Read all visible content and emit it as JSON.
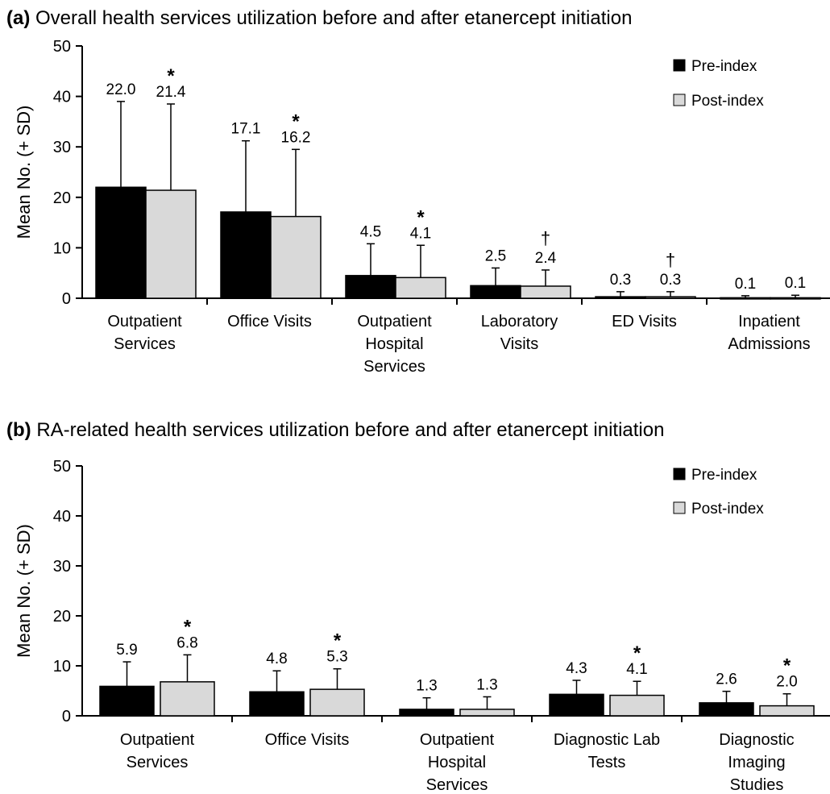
{
  "colors": {
    "pre": "#000000",
    "post": "#d9d9d9",
    "axis": "#000000"
  },
  "legend": {
    "pre_label": "Pre-index",
    "post_label": "Post-index",
    "placement": "top-right"
  },
  "chart_data": [
    {
      "type": "bar",
      "panel": "(a)",
      "title": "Overall health services utilization before and after etanercept initiation",
      "ylabel": "Mean No. (+ SD)",
      "xlabel": "",
      "ylim": [
        0,
        50
      ],
      "yticks": [
        0,
        10,
        20,
        30,
        40,
        50
      ],
      "categories": [
        [
          "Outpatient",
          "Services"
        ],
        [
          "Office Visits"
        ],
        [
          "Outpatient",
          "Hospital",
          "Services"
        ],
        [
          "Laboratory",
          "Visits"
        ],
        [
          "ED Visits"
        ],
        [
          "Inpatient",
          "Admissions"
        ]
      ],
      "series": [
        {
          "name": "Pre-index",
          "values": [
            22.0,
            17.1,
            4.5,
            2.5,
            0.3,
            0.1
          ],
          "labels": [
            "22.0",
            "17.1",
            "4.5",
            "2.5",
            "0.3",
            "0.1"
          ],
          "sd_top": [
            39.0,
            31.2,
            10.8,
            6.0,
            1.3,
            0.5
          ],
          "markers": [
            "",
            "",
            "",
            "",
            "",
            ""
          ]
        },
        {
          "name": "Post-index",
          "values": [
            21.4,
            16.2,
            4.1,
            2.4,
            0.3,
            0.1
          ],
          "labels": [
            "21.4",
            "16.2",
            "4.1",
            "2.4",
            "0.3",
            "0.1"
          ],
          "sd_top": [
            38.5,
            29.5,
            10.5,
            5.6,
            1.3,
            0.6
          ],
          "markers": [
            "*",
            "*",
            "*",
            "†",
            "†",
            ""
          ]
        }
      ],
      "grid": false
    },
    {
      "type": "bar",
      "panel": "(b)",
      "title": "RA-related health services utilization before and after etanercept initiation",
      "ylabel": "Mean No. (+ SD)",
      "xlabel": "",
      "ylim": [
        0,
        50
      ],
      "yticks": [
        0,
        10,
        20,
        30,
        40,
        50
      ],
      "categories": [
        [
          "Outpatient",
          "Services"
        ],
        [
          "Office Visits"
        ],
        [
          "Outpatient",
          "Hospital",
          "Services"
        ],
        [
          "Diagnostic Lab",
          "Tests"
        ],
        [
          "Diagnostic",
          "Imaging",
          "Studies"
        ]
      ],
      "series": [
        {
          "name": "Pre-index",
          "values": [
            5.9,
            4.8,
            1.3,
            4.3,
            2.6
          ],
          "labels": [
            "5.9",
            "4.8",
            "1.3",
            "4.3",
            "2.6"
          ],
          "sd_top": [
            10.8,
            9.0,
            3.6,
            7.1,
            4.9
          ],
          "markers": [
            "",
            "",
            "",
            "",
            ""
          ]
        },
        {
          "name": "Post-index",
          "values": [
            6.8,
            5.3,
            1.3,
            4.1,
            2.0
          ],
          "labels": [
            "6.8",
            "5.3",
            "1.3",
            "4.1",
            "2.0"
          ],
          "sd_top": [
            12.2,
            9.4,
            3.8,
            6.9,
            4.4
          ],
          "markers": [
            "*",
            "*",
            "",
            "*",
            "*"
          ]
        }
      ],
      "grid": false
    }
  ]
}
